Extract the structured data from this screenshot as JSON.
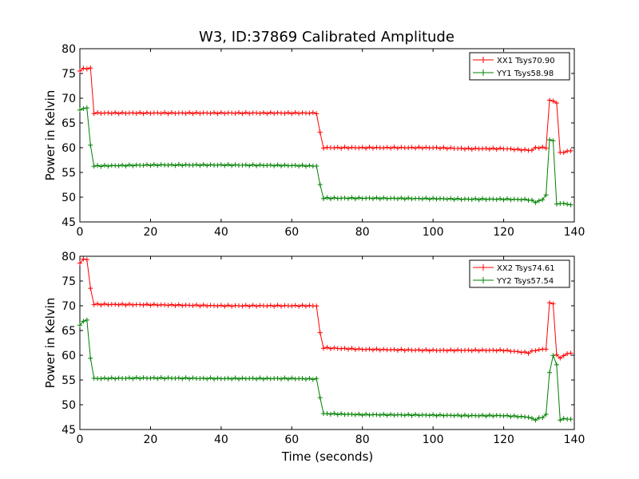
{
  "title": "W3, ID:37869 Calibrated Amplitude",
  "xlabel": "Time (seconds)",
  "chart_data": [
    {
      "type": "line",
      "title": "W3, ID:37869 Calibrated Amplitude",
      "xlabel": "",
      "ylabel": "Power in Kelvin",
      "xlim": [
        0,
        140
      ],
      "ylim": [
        45,
        80
      ],
      "xticks": [
        "0",
        "20",
        "40",
        "60",
        "80",
        "100",
        "120",
        "140"
      ],
      "yticks": [
        "45",
        "50",
        "55",
        "60",
        "65",
        "70",
        "75",
        "80"
      ],
      "grid": false,
      "legend_position": "top-right",
      "marker": "+",
      "series": [
        {
          "name": "XX1 Tsys70.90",
          "color": "#ff0000",
          "x": [
            0,
            1,
            2,
            3,
            4,
            20,
            40,
            60,
            67,
            68,
            69,
            80,
            100,
            110,
            120,
            127,
            128,
            129,
            132,
            133,
            134,
            135,
            136,
            138,
            139
          ],
          "y": [
            75.5,
            76,
            76,
            76,
            67,
            67,
            67,
            67,
            67,
            63,
            60,
            60,
            60,
            59.8,
            59.8,
            59.5,
            59.5,
            60,
            60,
            69.5,
            69.5,
            69,
            59,
            59.2,
            59.5
          ]
        },
        {
          "name": "YY1 Tsys58.98",
          "color": "#008000",
          "x": [
            0,
            1,
            2,
            3,
            4,
            20,
            40,
            60,
            67,
            68,
            69,
            80,
            100,
            110,
            120,
            127,
            128,
            129,
            131,
            132,
            133,
            134,
            135,
            136,
            138,
            139
          ],
          "y": [
            67.5,
            68,
            68,
            60.5,
            56.3,
            56.5,
            56.5,
            56.4,
            56.3,
            52.5,
            49.8,
            49.8,
            49.7,
            49.6,
            49.6,
            49.5,
            49.3,
            49,
            49.5,
            50.5,
            61.5,
            61.5,
            48.5,
            48.8,
            48.6,
            48.5
          ]
        }
      ]
    },
    {
      "type": "line",
      "title": "",
      "xlabel": "Time (seconds)",
      "ylabel": "Power in Kelvin",
      "xlim": [
        0,
        140
      ],
      "ylim": [
        45,
        80
      ],
      "xticks": [
        "0",
        "20",
        "40",
        "60",
        "80",
        "100",
        "120",
        "140"
      ],
      "yticks": [
        "45",
        "50",
        "55",
        "60",
        "65",
        "70",
        "75",
        "80"
      ],
      "grid": false,
      "legend_position": "top-right",
      "marker": "+",
      "series": [
        {
          "name": "XX2 Tsys74.61",
          "color": "#ff0000",
          "x": [
            0,
            1,
            2,
            3,
            4,
            20,
            40,
            60,
            67,
            68,
            69,
            80,
            100,
            110,
            120,
            127,
            128,
            129,
            132,
            133,
            134,
            135,
            136,
            138,
            139
          ],
          "y": [
            78.5,
            79.5,
            79.3,
            73.5,
            70.3,
            70.2,
            70,
            70,
            70,
            64.5,
            61.5,
            61.2,
            61,
            61,
            61,
            60.5,
            60.8,
            61,
            61.3,
            70.5,
            70.5,
            60,
            59.5,
            60.3,
            60.5
          ]
        },
        {
          "name": "YY2 Tsys57.54",
          "color": "#008000",
          "x": [
            0,
            1,
            2,
            3,
            4,
            20,
            40,
            60,
            67,
            68,
            69,
            80,
            100,
            110,
            120,
            127,
            128,
            129,
            131,
            132,
            133,
            134,
            135,
            136,
            138,
            139
          ],
          "y": [
            66,
            67,
            67,
            59.5,
            55.3,
            55.4,
            55.3,
            55.3,
            55.2,
            51.5,
            48.2,
            48,
            47.9,
            47.8,
            47.8,
            47.5,
            47.2,
            47,
            47.5,
            48,
            56.5,
            60,
            58,
            47,
            47.2,
            47
          ]
        }
      ]
    }
  ]
}
